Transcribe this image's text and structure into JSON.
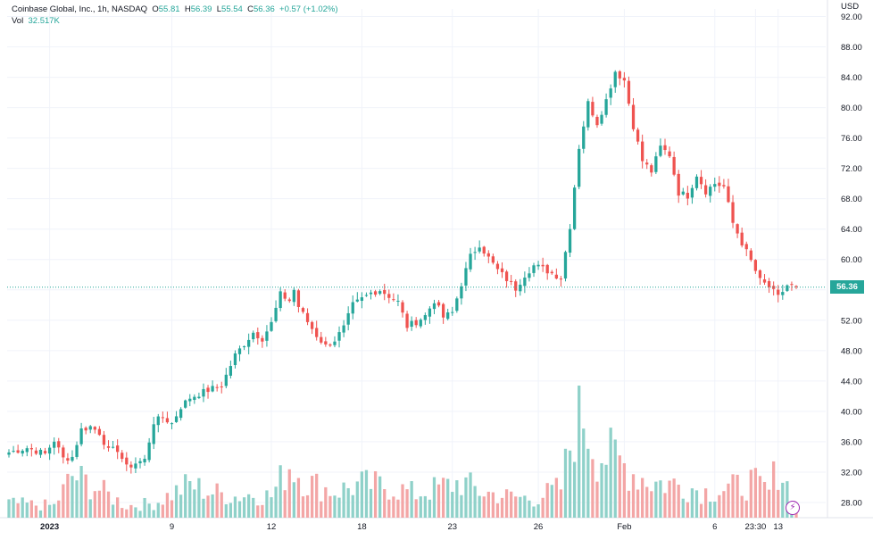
{
  "legend": {
    "symbol": "Coinbase Global, Inc., 1h, NASDAQ",
    "o_label": "O",
    "o_value": "55.81",
    "h_label": "H",
    "h_value": "56.39",
    "l_label": "L",
    "l_value": "55.54",
    "c_label": "C",
    "c_value": "56.36",
    "change": "+0.57 (+1.02%)",
    "vol_label": "Vol",
    "vol_value": "32.517K"
  },
  "currency": "USD",
  "last_price": "56.36",
  "colors": {
    "up": "#26a69a",
    "down": "#ef5350",
    "up_vol": "#8fd1c9",
    "down_vol": "#f3a6a6",
    "grid": "#f0f3fa",
    "text": "#131722",
    "replay": "#9c27b0"
  },
  "chart_data": {
    "type": "candlestick",
    "ylim": [
      26,
      93
    ],
    "y_ticks": [
      28,
      32,
      36,
      40,
      44,
      48,
      52,
      56,
      60,
      64,
      68,
      72,
      76,
      80,
      84,
      88,
      92
    ],
    "y_tick_labels": [
      "28.00",
      "32.00",
      "36.00",
      "40.00",
      "44.00",
      "48.00",
      "52.00",
      "56.00",
      "60.00",
      "64.00",
      "68.00",
      "72.00",
      "76.00",
      "80.00",
      "84.00",
      "88.00",
      "92.00"
    ],
    "x_tick_labels": [
      "2023",
      "9",
      "12",
      "18",
      "23",
      "26",
      "Feb",
      "6",
      "23:30",
      "13"
    ],
    "close_path": [
      [
        0,
        34.6
      ],
      [
        4,
        35.2
      ],
      [
        8,
        34.4
      ],
      [
        10,
        36.2
      ],
      [
        12,
        33.8
      ],
      [
        14,
        34.0
      ],
      [
        16,
        37.6
      ],
      [
        18,
        38.0
      ],
      [
        20,
        37.2
      ],
      [
        22,
        34.8
      ],
      [
        24,
        35.0
      ],
      [
        26,
        32.6
      ],
      [
        28,
        33.2
      ],
      [
        30,
        33.6
      ],
      [
        32,
        38.6
      ],
      [
        34,
        39.2
      ],
      [
        36,
        38.4
      ],
      [
        38,
        40.6
      ],
      [
        40,
        41.8
      ],
      [
        44,
        42.8
      ],
      [
        47,
        43.4
      ],
      [
        50,
        47.4
      ],
      [
        54,
        50.4
      ],
      [
        56,
        49.6
      ],
      [
        58,
        51.6
      ],
      [
        60,
        55.4
      ],
      [
        62,
        54.6
      ],
      [
        63,
        56.0
      ],
      [
        64,
        53.8
      ],
      [
        66,
        51.8
      ],
      [
        68,
        50.0
      ],
      [
        70,
        48.6
      ],
      [
        72,
        49.4
      ],
      [
        74,
        51.0
      ],
      [
        76,
        54.0
      ],
      [
        78,
        54.8
      ],
      [
        80,
        55.6
      ],
      [
        82,
        56.0
      ],
      [
        84,
        55.2
      ],
      [
        86,
        54.4
      ],
      [
        88,
        51.2
      ],
      [
        90,
        51.8
      ],
      [
        92,
        52.6
      ],
      [
        94,
        54.6
      ],
      [
        96,
        52.4
      ],
      [
        98,
        53.0
      ],
      [
        100,
        56.8
      ],
      [
        102,
        60.4
      ],
      [
        104,
        62.0
      ],
      [
        106,
        60.2
      ],
      [
        108,
        58.6
      ],
      [
        110,
        57.4
      ],
      [
        112,
        56.2
      ],
      [
        114,
        58.0
      ],
      [
        116,
        59.2
      ],
      [
        118,
        58.8
      ],
      [
        120,
        58.2
      ],
      [
        122,
        57.6
      ],
      [
        124,
        64.4
      ],
      [
        126,
        74.8
      ],
      [
        128,
        80.6
      ],
      [
        130,
        78.0
      ],
      [
        132,
        81.0
      ],
      [
        134,
        84.8
      ],
      [
        136,
        83.6
      ],
      [
        138,
        77.6
      ],
      [
        140,
        73.0
      ],
      [
        142,
        71.6
      ],
      [
        144,
        74.8
      ],
      [
        146,
        73.8
      ],
      [
        148,
        68.8
      ],
      [
        150,
        68.4
      ],
      [
        152,
        71.2
      ],
      [
        154,
        69.0
      ],
      [
        156,
        70.0
      ],
      [
        158,
        69.6
      ],
      [
        160,
        64.8
      ],
      [
        162,
        62.2
      ],
      [
        164,
        59.8
      ],
      [
        166,
        57.2
      ],
      [
        168,
        56.4
      ],
      [
        170,
        55.0
      ],
      [
        172,
        56.6
      ],
      [
        174,
        56.36
      ]
    ],
    "volume_path": [
      [
        0,
        0.12
      ],
      [
        10,
        0.1
      ],
      [
        14,
        0.35
      ],
      [
        18,
        0.28
      ],
      [
        26,
        0.1
      ],
      [
        32,
        0.12
      ],
      [
        40,
        0.28
      ],
      [
        44,
        0.22
      ],
      [
        50,
        0.18
      ],
      [
        54,
        0.2
      ],
      [
        58,
        0.18
      ],
      [
        62,
        0.45
      ],
      [
        66,
        0.3
      ],
      [
        72,
        0.22
      ],
      [
        78,
        0.28
      ],
      [
        84,
        0.26
      ],
      [
        90,
        0.2
      ],
      [
        96,
        0.26
      ],
      [
        100,
        0.3
      ],
      [
        104,
        0.22
      ],
      [
        110,
        0.18
      ],
      [
        116,
        0.16
      ],
      [
        122,
        0.25
      ],
      [
        124,
        0.6
      ],
      [
        126,
        1.0
      ],
      [
        130,
        0.55
      ],
      [
        134,
        0.5
      ],
      [
        138,
        0.38
      ],
      [
        142,
        0.3
      ],
      [
        148,
        0.28
      ],
      [
        154,
        0.22
      ],
      [
        160,
        0.25
      ],
      [
        164,
        0.3
      ],
      [
        168,
        0.22
      ],
      [
        170,
        0.45
      ],
      [
        174,
        0.1
      ]
    ]
  }
}
